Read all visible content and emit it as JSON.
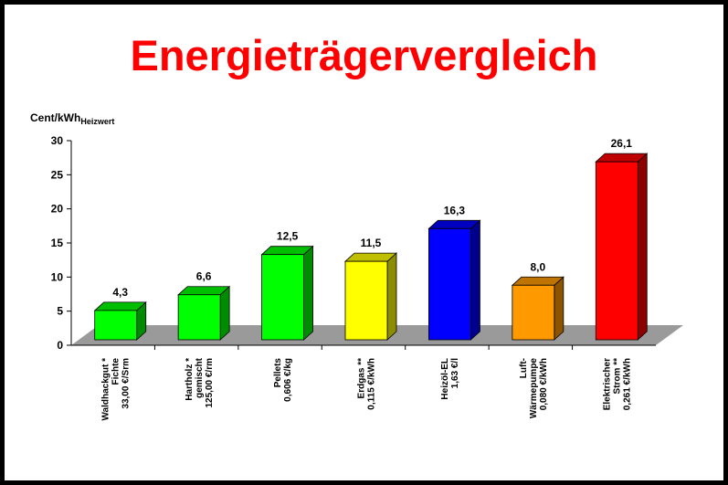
{
  "title": "Energieträgervergleich",
  "chart_data": {
    "type": "bar",
    "title": "Energieträgervergleich",
    "ylabel_main": "Cent/kWh",
    "ylabel_sub": "Heizwert",
    "xlabel": "",
    "ylim": [
      0,
      30
    ],
    "yticks": [
      0,
      5,
      10,
      15,
      20,
      25,
      30
    ],
    "grid": false,
    "categories": [
      [
        "Waldhackgut *",
        "Fichte",
        "33,00 €/Srm"
      ],
      [
        "Hartholz *",
        "gemischt",
        "125,00 €/rm"
      ],
      [
        "Pellets",
        "0,606 €/kg"
      ],
      [
        "Erdgas **",
        "0,115 €/kWh"
      ],
      [
        "Heizöl-EL",
        "1,63 €/l"
      ],
      [
        "Luft-",
        "Wärmepumpe",
        "0,080 €/kWh"
      ],
      [
        "Elektrischer",
        "Strom **",
        "0,261 €/kWh"
      ]
    ],
    "values": [
      4.3,
      6.6,
      12.5,
      11.5,
      16.3,
      8.0,
      26.1
    ],
    "value_labels": [
      "4,3",
      "6,6",
      "12,5",
      "11,5",
      "16,3",
      "8,0",
      "26,1"
    ],
    "colors": [
      "#00ff00",
      "#00ff00",
      "#00ff00",
      "#ffff00",
      "#0000ff",
      "#ff9900",
      "#ff0000"
    ]
  }
}
